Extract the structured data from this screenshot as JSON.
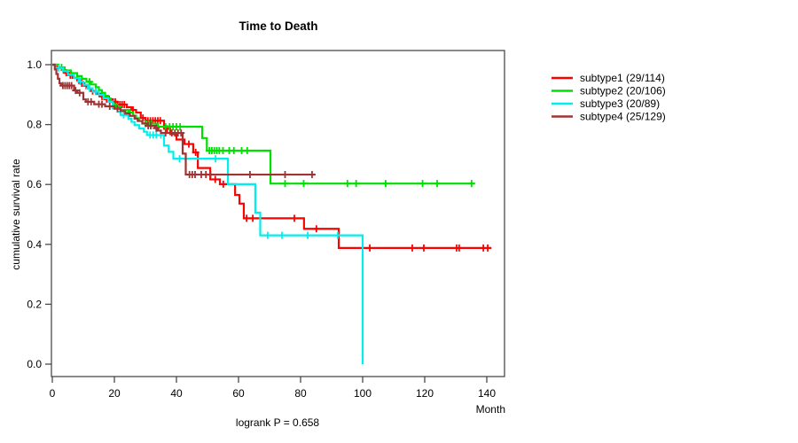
{
  "chart_data": {
    "type": "line",
    "subtype": "kaplan-meier-step-curves",
    "title": "Time to Death",
    "xlabel": "Month",
    "ylabel": "cumulative survival rate",
    "footnote": "logrank P = 0.658",
    "xlim": [
      0,
      146
    ],
    "ylim": [
      0.0,
      1.0
    ],
    "grid": false,
    "legend_position": "right-outside",
    "axis_color": "#4a4a4a",
    "x_ticks": [
      {
        "value": 0,
        "label": "0"
      },
      {
        "value": 20,
        "label": "20"
      },
      {
        "value": 40,
        "label": "40"
      },
      {
        "value": 60,
        "label": "60"
      },
      {
        "value": 80,
        "label": "80"
      },
      {
        "value": 100,
        "label": "100"
      },
      {
        "value": 120,
        "label": "120"
      },
      {
        "value": 140,
        "label": "140"
      }
    ],
    "y_ticks": [
      {
        "value": 0.0,
        "label": "0.0"
      },
      {
        "value": 0.2,
        "label": "0.2"
      },
      {
        "value": 0.4,
        "label": "0.4"
      },
      {
        "value": 0.6,
        "label": "0.6"
      },
      {
        "value": 0.8,
        "label": "0.8"
      },
      {
        "value": 1.0,
        "label": "1.0"
      }
    ],
    "series": [
      {
        "name": "subtype1",
        "label": "subtype1 (29/114)",
        "color": "#ff0000",
        "start": [
          0,
          1.0
        ],
        "end": 141.5,
        "steps": [
          [
            1.5,
            0.991
          ],
          [
            3,
            0.982
          ],
          [
            4,
            0.973
          ],
          [
            5,
            0.965
          ],
          [
            6.5,
            0.956
          ],
          [
            8,
            0.947
          ],
          [
            9,
            0.938
          ],
          [
            10,
            0.93
          ],
          [
            11,
            0.921
          ],
          [
            12.5,
            0.912
          ],
          [
            14,
            0.903
          ],
          [
            15.5,
            0.894
          ],
          [
            17,
            0.885
          ],
          [
            19,
            0.876
          ],
          [
            21,
            0.867
          ],
          [
            24,
            0.858
          ],
          [
            25.5,
            0.849
          ],
          [
            27,
            0.84
          ],
          [
            28.5,
            0.822
          ],
          [
            30,
            0.813
          ],
          [
            36,
            0.786
          ],
          [
            38,
            0.768
          ],
          [
            40,
            0.75
          ],
          [
            42.6,
            0.735
          ],
          [
            45.4,
            0.707
          ],
          [
            46.9,
            0.655
          ],
          [
            50.9,
            0.617
          ],
          [
            54,
            0.601
          ],
          [
            58.9,
            0.565
          ],
          [
            60.3,
            0.536
          ],
          [
            61.7,
            0.487
          ],
          [
            81.1,
            0.452
          ],
          [
            92.3,
            0.388
          ]
        ],
        "censors": [
          [
            4.5,
            0.973
          ],
          [
            5.8,
            0.965
          ],
          [
            9.5,
            0.938
          ],
          [
            13,
            0.912
          ],
          [
            16,
            0.894
          ],
          [
            17.5,
            0.885
          ],
          [
            18.3,
            0.885
          ],
          [
            19.6,
            0.876
          ],
          [
            20.3,
            0.876
          ],
          [
            21.8,
            0.867
          ],
          [
            22.5,
            0.867
          ],
          [
            23.2,
            0.867
          ],
          [
            26,
            0.849
          ],
          [
            29.2,
            0.822
          ],
          [
            30.8,
            0.813
          ],
          [
            31.6,
            0.813
          ],
          [
            32.4,
            0.813
          ],
          [
            33.2,
            0.813
          ],
          [
            34,
            0.813
          ],
          [
            34.8,
            0.813
          ],
          [
            37,
            0.786
          ],
          [
            44,
            0.735
          ],
          [
            46.2,
            0.707
          ],
          [
            52.5,
            0.617
          ],
          [
            55.1,
            0.601
          ],
          [
            62.6,
            0.487
          ],
          [
            64.6,
            0.487
          ],
          [
            78,
            0.487
          ],
          [
            85.1,
            0.452
          ],
          [
            102.3,
            0.388
          ],
          [
            116,
            0.388
          ],
          [
            119.7,
            0.388
          ],
          [
            130.3,
            0.388
          ],
          [
            131.1,
            0.388
          ],
          [
            138.9,
            0.388
          ],
          [
            140.3,
            0.388
          ]
        ]
      },
      {
        "name": "subtype2",
        "label": "subtype2 (20/106)",
        "color": "#00e000",
        "start": [
          0,
          1.0
        ],
        "end": 136,
        "steps": [
          [
            2,
            0.991
          ],
          [
            4,
            0.981
          ],
          [
            6,
            0.972
          ],
          [
            8,
            0.962
          ],
          [
            9.5,
            0.953
          ],
          [
            11,
            0.943
          ],
          [
            12.5,
            0.934
          ],
          [
            14,
            0.925
          ],
          [
            15,
            0.915
          ],
          [
            16,
            0.906
          ],
          [
            17,
            0.896
          ],
          [
            18,
            0.887
          ],
          [
            18.8,
            0.877
          ],
          [
            19.5,
            0.868
          ],
          [
            20.5,
            0.858
          ],
          [
            22,
            0.849
          ],
          [
            24.5,
            0.84
          ],
          [
            26,
            0.83
          ],
          [
            27,
            0.821
          ],
          [
            28,
            0.812
          ],
          [
            29,
            0.803
          ],
          [
            34,
            0.793
          ],
          [
            48.3,
            0.755
          ],
          [
            49.8,
            0.713
          ],
          [
            70.3,
            0.603
          ]
        ],
        "censors": [
          [
            3,
            0.991
          ],
          [
            12,
            0.943
          ],
          [
            21,
            0.858
          ],
          [
            25,
            0.84
          ],
          [
            30,
            0.803
          ],
          [
            31,
            0.803
          ],
          [
            32,
            0.803
          ],
          [
            36.5,
            0.793
          ],
          [
            37.8,
            0.793
          ],
          [
            38.9,
            0.793
          ],
          [
            40,
            0.793
          ],
          [
            41.2,
            0.793
          ],
          [
            50.6,
            0.713
          ],
          [
            51.4,
            0.713
          ],
          [
            52.2,
            0.713
          ],
          [
            53,
            0.713
          ],
          [
            53.8,
            0.713
          ],
          [
            55,
            0.713
          ],
          [
            57,
            0.713
          ],
          [
            58.5,
            0.713
          ],
          [
            61,
            0.713
          ],
          [
            62.8,
            0.713
          ],
          [
            75,
            0.603
          ],
          [
            81,
            0.603
          ],
          [
            95.1,
            0.603
          ],
          [
            97.9,
            0.603
          ],
          [
            107.4,
            0.603
          ],
          [
            119.3,
            0.603
          ],
          [
            124,
            0.603
          ],
          [
            135.1,
            0.603
          ]
        ]
      },
      {
        "name": "subtype3",
        "label": "subtype3 (20/89)",
        "color": "#00eeee",
        "start": [
          0,
          1.0
        ],
        "end": 100,
        "steps": [
          [
            1,
            0.989
          ],
          [
            3.5,
            0.978
          ],
          [
            5,
            0.966
          ],
          [
            7,
            0.955
          ],
          [
            8.5,
            0.944
          ],
          [
            10,
            0.933
          ],
          [
            11.5,
            0.921
          ],
          [
            13,
            0.91
          ],
          [
            15,
            0.899
          ],
          [
            16.5,
            0.888
          ],
          [
            18,
            0.876
          ],
          [
            19.5,
            0.854
          ],
          [
            21,
            0.843
          ],
          [
            22,
            0.832
          ],
          [
            24.5,
            0.82
          ],
          [
            25.5,
            0.809
          ],
          [
            26.5,
            0.798
          ],
          [
            28,
            0.787
          ],
          [
            29.5,
            0.776
          ],
          [
            30.5,
            0.765
          ],
          [
            36,
            0.73
          ],
          [
            37.5,
            0.709
          ],
          [
            39,
            0.686
          ],
          [
            56.6,
            0.601
          ],
          [
            65.4,
            0.506
          ],
          [
            67,
            0.43
          ],
          [
            100,
            0.0
          ]
        ],
        "censors": [
          [
            2,
            0.989
          ],
          [
            9,
            0.944
          ],
          [
            12,
            0.921
          ],
          [
            14,
            0.91
          ],
          [
            23,
            0.832
          ],
          [
            31.5,
            0.765
          ],
          [
            32.5,
            0.765
          ],
          [
            33.5,
            0.765
          ],
          [
            35,
            0.765
          ],
          [
            41,
            0.686
          ],
          [
            43,
            0.686
          ],
          [
            52.6,
            0.686
          ],
          [
            69.4,
            0.43
          ],
          [
            74,
            0.43
          ],
          [
            82.3,
            0.43
          ],
          [
            92,
            0.43
          ]
        ]
      },
      {
        "name": "subtype4",
        "label": "subtype4 (25/129)",
        "color": "#a03333",
        "start": [
          0,
          1.0
        ],
        "end": 84.6,
        "steps": [
          [
            0.8,
            0.984
          ],
          [
            1.3,
            0.969
          ],
          [
            1.8,
            0.953
          ],
          [
            2.3,
            0.938
          ],
          [
            2.8,
            0.93
          ],
          [
            7,
            0.914
          ],
          [
            8,
            0.906
          ],
          [
            10,
            0.884
          ],
          [
            10.8,
            0.876
          ],
          [
            13.5,
            0.868
          ],
          [
            17,
            0.861
          ],
          [
            20,
            0.853
          ],
          [
            22,
            0.845
          ],
          [
            23.5,
            0.837
          ],
          [
            25,
            0.829
          ],
          [
            26.5,
            0.82
          ],
          [
            27.5,
            0.812
          ],
          [
            29,
            0.804
          ],
          [
            30.5,
            0.796
          ],
          [
            33,
            0.788
          ],
          [
            34,
            0.78
          ],
          [
            35,
            0.772
          ],
          [
            42,
            0.703
          ],
          [
            43,
            0.633
          ]
        ],
        "censors": [
          [
            3.4,
            0.93
          ],
          [
            4.1,
            0.93
          ],
          [
            4.8,
            0.93
          ],
          [
            5.5,
            0.93
          ],
          [
            6.2,
            0.93
          ],
          [
            7.5,
            0.914
          ],
          [
            8.8,
            0.906
          ],
          [
            11.5,
            0.876
          ],
          [
            12.5,
            0.876
          ],
          [
            15,
            0.868
          ],
          [
            16,
            0.868
          ],
          [
            18.5,
            0.861
          ],
          [
            21,
            0.853
          ],
          [
            30.9,
            0.796
          ],
          [
            31.7,
            0.796
          ],
          [
            33.5,
            0.788
          ],
          [
            36.5,
            0.772
          ],
          [
            38.5,
            0.772
          ],
          [
            39.5,
            0.772
          ],
          [
            40.5,
            0.772
          ],
          [
            41.5,
            0.772
          ],
          [
            44.2,
            0.633
          ],
          [
            45.1,
            0.633
          ],
          [
            46,
            0.633
          ],
          [
            48,
            0.633
          ],
          [
            49.5,
            0.633
          ],
          [
            51,
            0.633
          ],
          [
            63.7,
            0.633
          ],
          [
            75,
            0.633
          ],
          [
            83.7,
            0.633
          ]
        ]
      }
    ]
  }
}
